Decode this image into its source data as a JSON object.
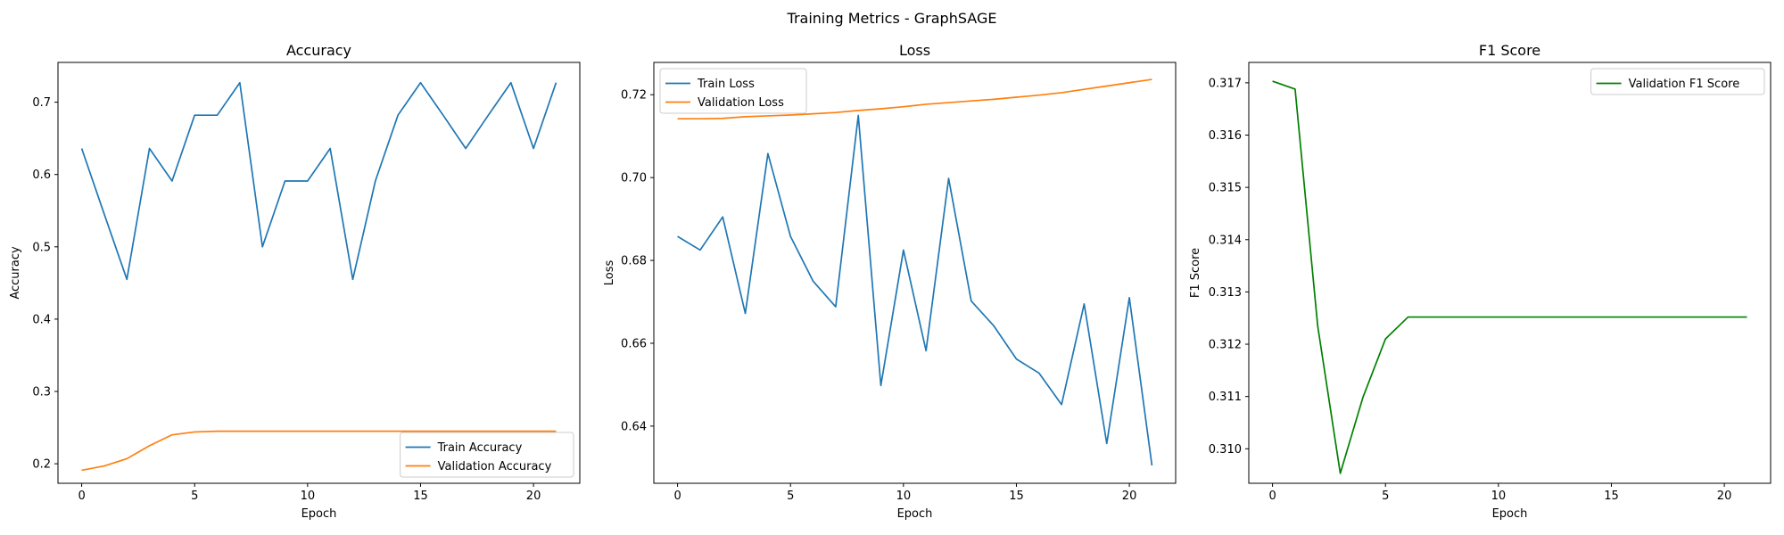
{
  "suptitle": "Training Metrics - GraphSAGE",
  "chart_data": [
    {
      "type": "line",
      "title": "Accuracy",
      "xlabel": "Epoch",
      "ylabel": "Accuracy",
      "xlim": [
        -1.05,
        22.05
      ],
      "ylim": [
        0.173,
        0.755
      ],
      "xticks": [
        0,
        5,
        10,
        15,
        20
      ],
      "yticks": [
        0.2,
        0.3,
        0.4,
        0.5,
        0.6,
        0.7
      ],
      "ytick_labels": [
        "0.2",
        "0.3",
        "0.4",
        "0.5",
        "0.6",
        "0.7"
      ],
      "legend_loc": "lower-right",
      "grid": false,
      "x": [
        0,
        1,
        2,
        3,
        4,
        5,
        6,
        7,
        8,
        9,
        10,
        11,
        12,
        13,
        14,
        15,
        16,
        17,
        18,
        19,
        20,
        21
      ],
      "series": [
        {
          "name": "Train Accuracy",
          "color": "#1f77b4",
          "values": [
            0.636,
            0.545,
            0.455,
            0.636,
            0.591,
            0.682,
            0.682,
            0.727,
            0.5,
            0.591,
            0.591,
            0.636,
            0.455,
            0.591,
            0.682,
            0.727,
            0.682,
            0.636,
            0.682,
            0.727,
            0.636,
            0.727
          ]
        },
        {
          "name": "Validation Accuracy",
          "color": "#ff7f0e",
          "values": [
            0.191,
            0.197,
            0.207,
            0.225,
            0.24,
            0.244,
            0.245,
            0.245,
            0.245,
            0.245,
            0.245,
            0.245,
            0.245,
            0.245,
            0.245,
            0.245,
            0.245,
            0.245,
            0.245,
            0.245,
            0.245,
            0.245
          ]
        }
      ]
    },
    {
      "type": "line",
      "title": "Loss",
      "xlabel": "Epoch",
      "ylabel": "Loss",
      "xlim": [
        -1.05,
        22.05
      ],
      "ylim": [
        0.6262,
        0.7278
      ],
      "xticks": [
        0,
        5,
        10,
        15,
        20
      ],
      "yticks": [
        0.64,
        0.66,
        0.68,
        0.7,
        0.72
      ],
      "ytick_labels": [
        "0.64",
        "0.66",
        "0.68",
        "0.70",
        "0.72"
      ],
      "legend_loc": "upper-left",
      "grid": false,
      "x": [
        0,
        1,
        2,
        3,
        4,
        5,
        6,
        7,
        8,
        9,
        10,
        11,
        12,
        13,
        14,
        15,
        16,
        17,
        18,
        19,
        20,
        21
      ],
      "series": [
        {
          "name": "Train Loss",
          "color": "#1f77b4",
          "values": [
            0.6858,
            0.6825,
            0.6905,
            0.6672,
            0.7058,
            0.6858,
            0.675,
            0.6688,
            0.715,
            0.6498,
            0.6825,
            0.6582,
            0.6998,
            0.6702,
            0.6642,
            0.6562,
            0.6528,
            0.6452,
            0.6695,
            0.6358,
            0.671,
            0.6305
          ]
        },
        {
          "name": "Validation Loss",
          "color": "#ff7f0e",
          "values": [
            0.7142,
            0.7142,
            0.7143,
            0.7147,
            0.7149,
            0.7151,
            0.7154,
            0.7157,
            0.7162,
            0.7166,
            0.7171,
            0.7177,
            0.7181,
            0.7185,
            0.7189,
            0.7194,
            0.7199,
            0.7205,
            0.7213,
            0.7221,
            0.7229,
            0.7237
          ]
        }
      ]
    },
    {
      "type": "line",
      "title": "F1 Score",
      "xlabel": "Epoch",
      "ylabel": "F1 Score",
      "xlim": [
        -1.05,
        22.05
      ],
      "ylim": [
        0.30934,
        0.31739
      ],
      "xticks": [
        0,
        5,
        10,
        15,
        20
      ],
      "yticks": [
        0.31,
        0.311,
        0.312,
        0.313,
        0.314,
        0.315,
        0.316,
        0.317
      ],
      "ytick_labels": [
        "0.310",
        "0.311",
        "0.312",
        "0.313",
        "0.314",
        "0.315",
        "0.316",
        "0.317"
      ],
      "legend_loc": "upper-right",
      "grid": false,
      "x": [
        0,
        1,
        2,
        3,
        4,
        5,
        6,
        7,
        8,
        9,
        10,
        11,
        12,
        13,
        14,
        15,
        16,
        17,
        18,
        19,
        20,
        21
      ],
      "series": [
        {
          "name": "Validation F1 Score",
          "color": "#008000",
          "values": [
            0.31703,
            0.31688,
            0.31235,
            0.30953,
            0.31098,
            0.3121,
            0.31252,
            0.31252,
            0.31252,
            0.31252,
            0.31252,
            0.31252,
            0.31252,
            0.31252,
            0.31252,
            0.31252,
            0.31252,
            0.31252,
            0.31252,
            0.31252,
            0.31252,
            0.31252
          ]
        }
      ]
    }
  ]
}
